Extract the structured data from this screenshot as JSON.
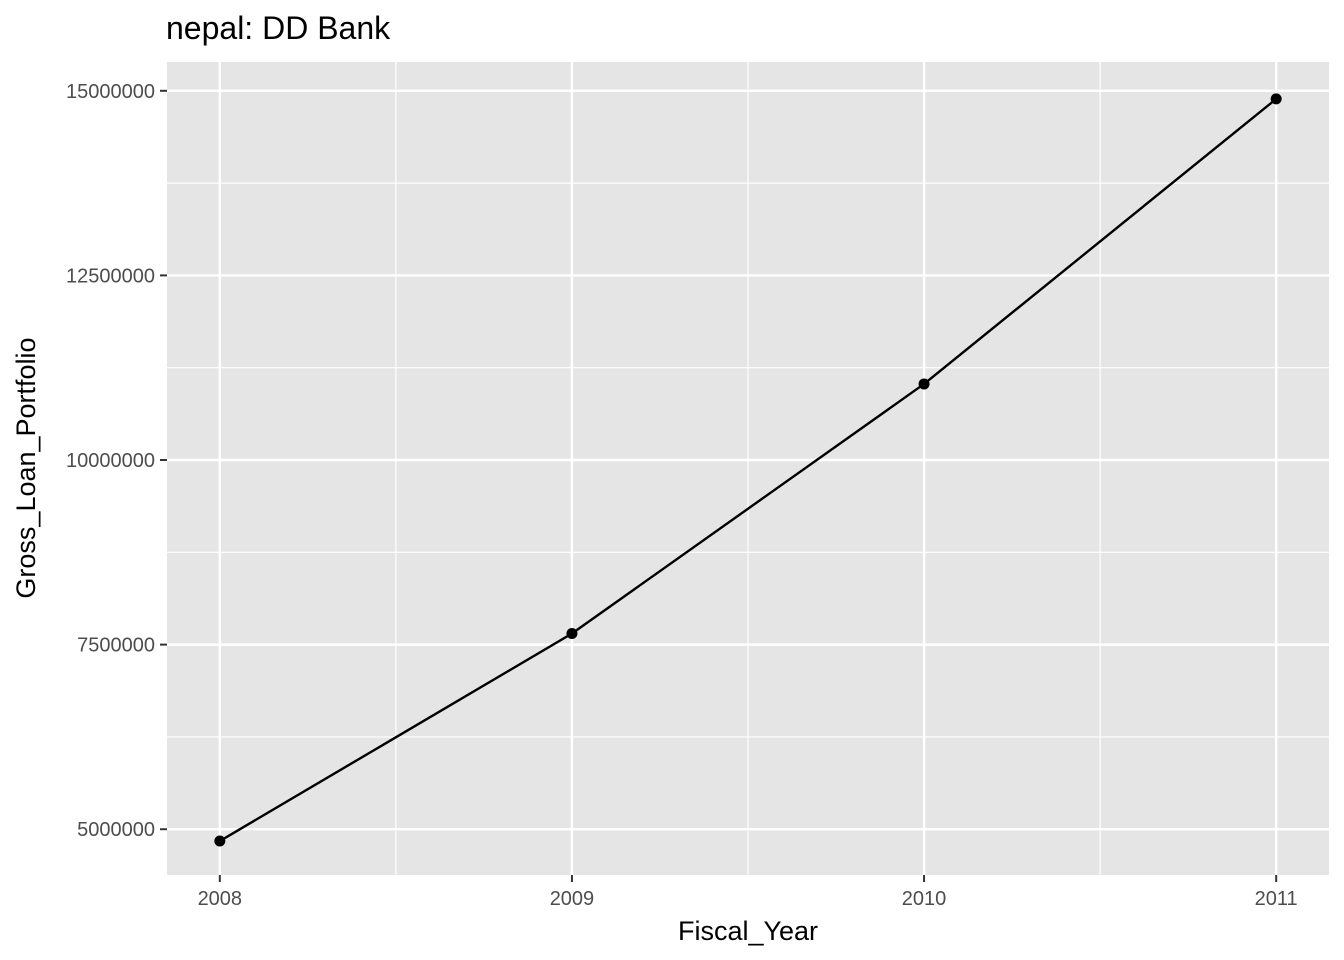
{
  "chart_data": {
    "type": "line",
    "title": "nepal:  DD Bank",
    "xlabel": "Fiscal_Year",
    "ylabel": "Gross_Loan_Portfolio",
    "x": [
      2008,
      2009,
      2010,
      2011
    ],
    "series": [
      {
        "values": [
          4840000,
          7650000,
          11030000,
          14890000
        ]
      }
    ],
    "xlim": [
      2007.85,
      2011.15
    ],
    "ylim": [
      4380000,
      15390000
    ],
    "x_ticks": [
      2008,
      2009,
      2010,
      2011
    ],
    "x_tick_labels": [
      "2008",
      "2009",
      "2010",
      "2011"
    ],
    "y_ticks": [
      5000000,
      7500000,
      10000000,
      12500000,
      15000000
    ],
    "y_tick_labels": [
      "5000000",
      "7500000",
      "10000000",
      "12500000",
      "15000000"
    ],
    "grid": true,
    "panel_color": "#e5e5e5",
    "grid_color": "#ffffff",
    "line_color": "#000000",
    "point_color": "#000000"
  }
}
